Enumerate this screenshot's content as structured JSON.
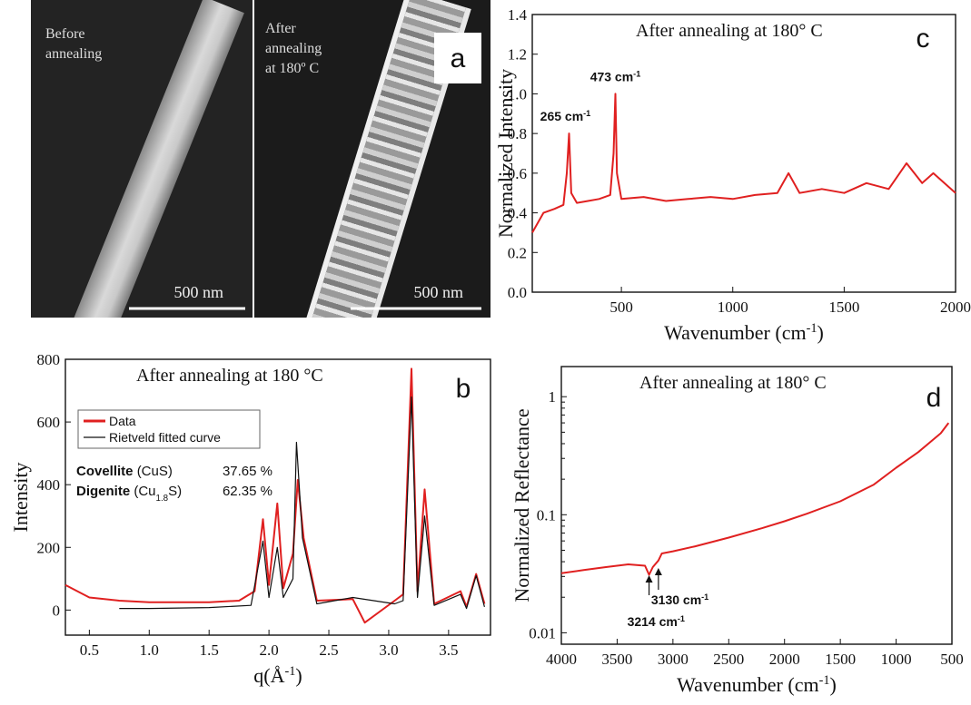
{
  "panel_a": {
    "letter": "a",
    "left_label": [
      "Before",
      "annealing"
    ],
    "right_label": [
      "After",
      "annealing",
      "at 180º C"
    ],
    "scale_left": "500 nm",
    "scale_right": "500 nm"
  },
  "chart_data": [
    {
      "panel": "c",
      "type": "line",
      "title": "After annealing at 180° C",
      "xlabel": "Wavenumber (cm-1)",
      "ylabel": "Normalized Intensity",
      "xlim": [
        100,
        2000
      ],
      "ylim": [
        0.0,
        1.4
      ],
      "xticks": [
        500,
        1000,
        1500,
        2000
      ],
      "yticks": [
        0.0,
        0.2,
        0.4,
        0.6,
        0.8,
        1.0,
        1.2,
        1.4
      ],
      "color": "#e02020",
      "annotations": [
        {
          "text": "265 cm-1",
          "x": 265,
          "y": 0.8
        },
        {
          "text": "473 cm-1",
          "x": 473,
          "y": 1.0
        }
      ],
      "series": [
        {
          "x": [
            100,
            150,
            200,
            240,
            255,
            265,
            275,
            300,
            350,
            400,
            450,
            465,
            473,
            480,
            500,
            600,
            700,
            800,
            900,
            1000,
            1100,
            1200,
            1250,
            1300,
            1400,
            1500,
            1600,
            1700,
            1780,
            1850,
            1900,
            2000
          ],
          "y": [
            0.3,
            0.4,
            0.42,
            0.44,
            0.6,
            0.8,
            0.5,
            0.45,
            0.46,
            0.47,
            0.49,
            0.7,
            1.0,
            0.6,
            0.47,
            0.48,
            0.46,
            0.47,
            0.48,
            0.47,
            0.49,
            0.5,
            0.6,
            0.5,
            0.52,
            0.5,
            0.55,
            0.52,
            0.65,
            0.55,
            0.6,
            0.5
          ]
        }
      ]
    },
    {
      "panel": "b",
      "type": "line",
      "title": "After annealing at 180 °C",
      "xlabel": "q(Å-1)",
      "ylabel": "Intensity",
      "xlim": [
        0.3,
        3.85
      ],
      "ylim": [
        -80,
        800
      ],
      "xticks": [
        0.5,
        1.0,
        1.5,
        2.0,
        2.5,
        3.0,
        3.5
      ],
      "yticks": [
        0,
        200,
        400,
        600,
        800
      ],
      "legend": [
        "Data",
        "Rietveld fitted curve"
      ],
      "legend_position": "upper-left",
      "phases": [
        {
          "name": "Covellite",
          "formula": "(CuS)",
          "percent": "37.65 %"
        },
        {
          "name": "Digenite",
          "formula": "(Cu1.8S)",
          "percent": "62.35 %"
        }
      ],
      "series": [
        {
          "name": "Data",
          "color": "#e02020",
          "x": [
            0.3,
            0.5,
            0.75,
            1.0,
            1.25,
            1.5,
            1.75,
            1.88,
            1.95,
            2.0,
            2.07,
            2.12,
            2.2,
            2.24,
            2.29,
            2.4,
            2.7,
            2.8,
            3.05,
            3.12,
            3.19,
            3.24,
            3.3,
            3.38,
            3.6,
            3.65,
            3.73,
            3.8
          ],
          "y": [
            80,
            40,
            30,
            25,
            25,
            25,
            30,
            60,
            290,
            80,
            340,
            70,
            180,
            415,
            230,
            30,
            35,
            -40,
            30,
            50,
            770,
            60,
            385,
            20,
            60,
            10,
            115,
            20
          ]
        },
        {
          "name": "Rietveld fitted curve",
          "color": "#111111",
          "x": [
            0.75,
            1.0,
            1.5,
            1.85,
            1.95,
            2.0,
            2.07,
            2.12,
            2.2,
            2.23,
            2.28,
            2.4,
            2.7,
            3.05,
            3.12,
            3.19,
            3.24,
            3.3,
            3.38,
            3.6,
            3.65,
            3.73,
            3.8
          ],
          "y": [
            5,
            5,
            8,
            15,
            220,
            40,
            200,
            40,
            100,
            535,
            230,
            20,
            40,
            20,
            30,
            680,
            40,
            300,
            15,
            50,
            5,
            110,
            10
          ]
        }
      ]
    },
    {
      "panel": "d",
      "type": "line",
      "title": "After annealing at 180° C",
      "xlabel": "Wavenumber (cm-1)",
      "ylabel": "Normalized Reflectance",
      "scale_y": "log",
      "xlim": [
        4000,
        500
      ],
      "ylim": [
        0.008,
        1.8
      ],
      "xticks": [
        4000,
        3500,
        3000,
        2500,
        2000,
        1500,
        1000,
        500
      ],
      "yticks": [
        0.01,
        0.1,
        1
      ],
      "annotations": [
        {
          "text": "3130 cm-1",
          "x": 3130
        },
        {
          "text": "3214 cm-1",
          "x": 3214
        }
      ],
      "series": [
        {
          "color": "#e02020",
          "x": [
            4000,
            3800,
            3600,
            3400,
            3250,
            3214,
            3180,
            3130,
            3100,
            3000,
            2800,
            2500,
            2200,
            2000,
            1800,
            1500,
            1200,
            1000,
            800,
            600,
            530
          ],
          "y": [
            0.032,
            0.034,
            0.036,
            0.038,
            0.037,
            0.031,
            0.036,
            0.041,
            0.047,
            0.049,
            0.054,
            0.064,
            0.077,
            0.088,
            0.102,
            0.13,
            0.18,
            0.25,
            0.34,
            0.49,
            0.6
          ]
        }
      ]
    }
  ]
}
